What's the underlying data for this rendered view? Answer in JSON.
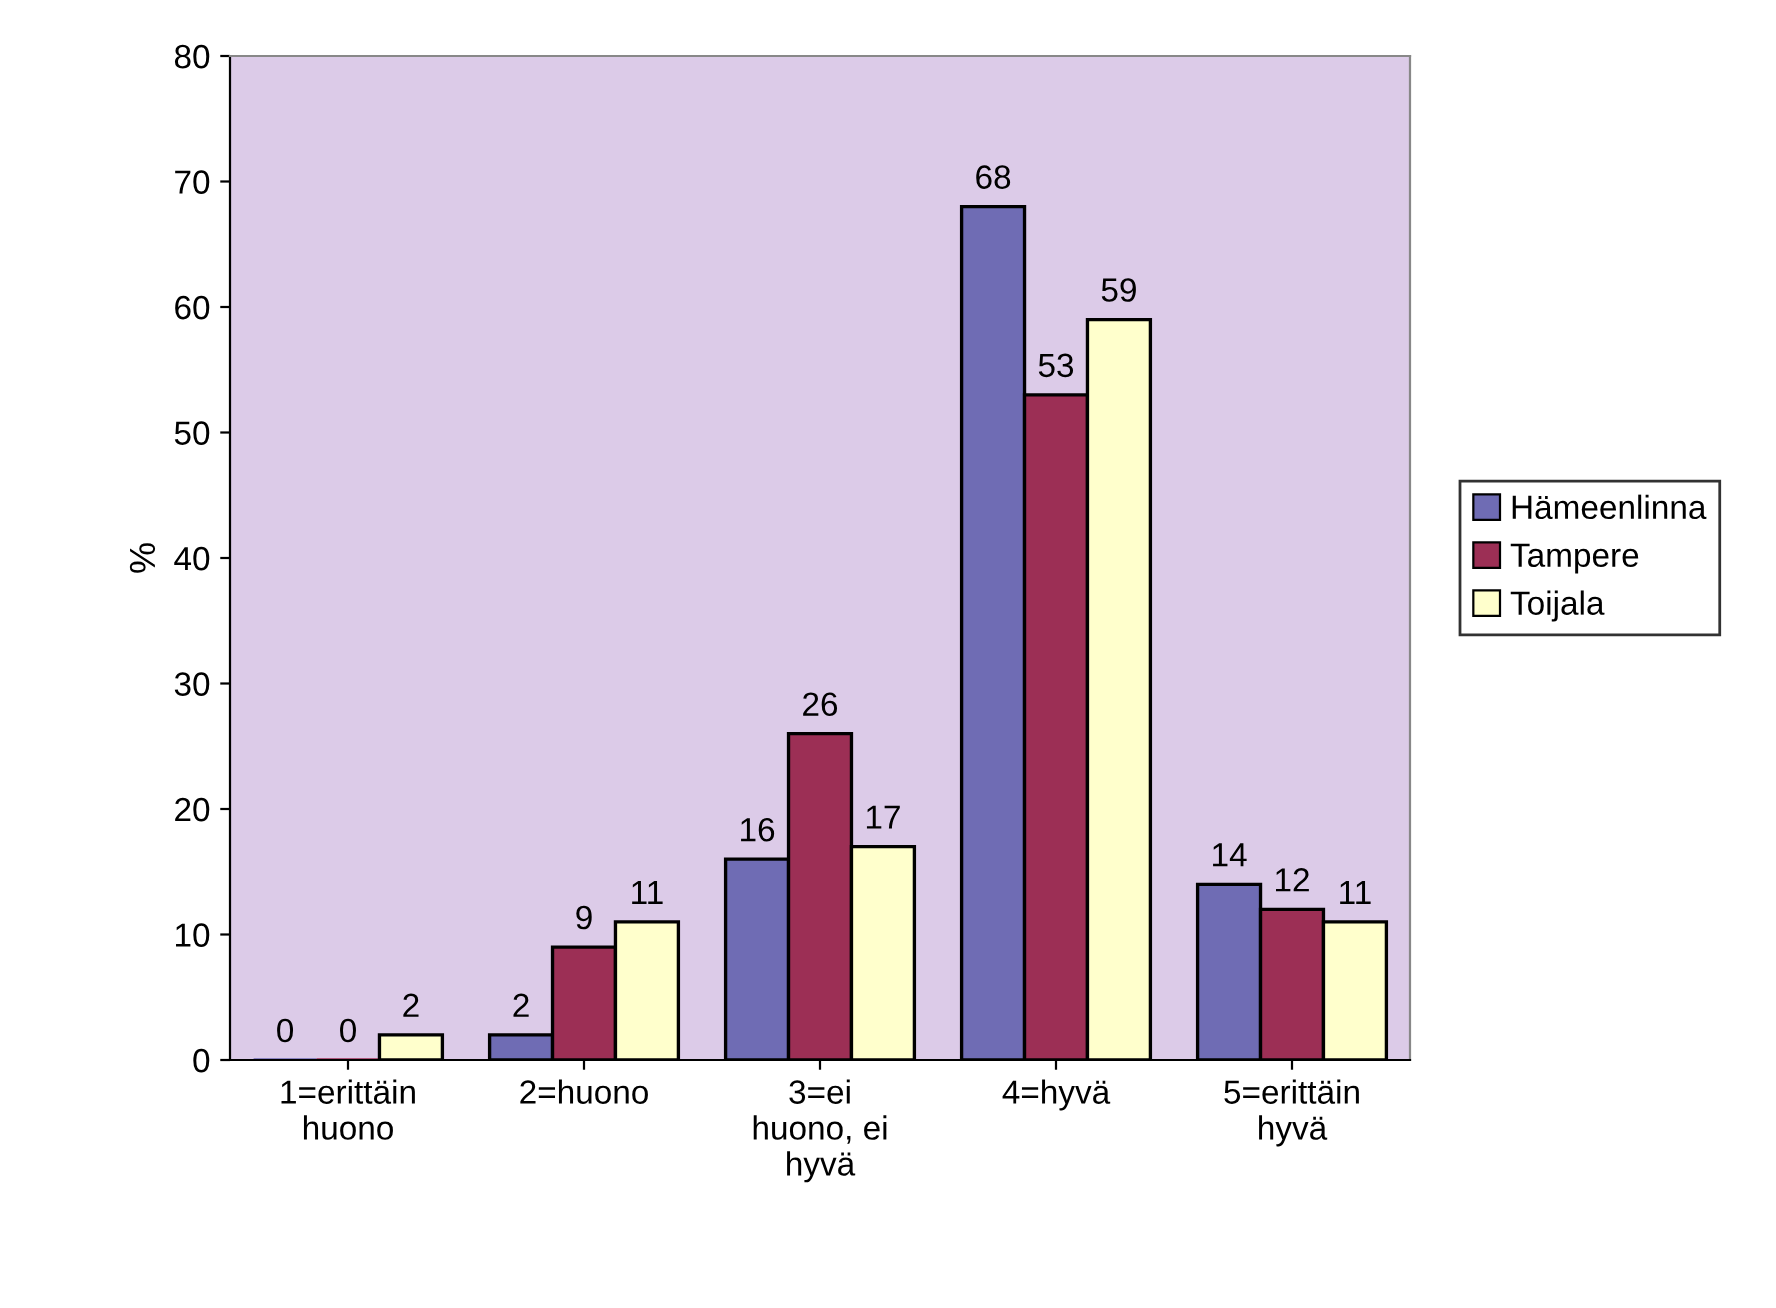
{
  "chart_data": {
    "type": "bar",
    "ylabel": "%",
    "categories": [
      "1=erittäin\nhuono",
      "2=huono",
      "3=ei\nhuono, ei\nhyvä",
      "4=hyvä",
      "5=erittäin\nhyvä"
    ],
    "series": [
      {
        "name": "Hämeenlinna",
        "color": "#6f6cb4",
        "values": [
          0,
          2,
          16,
          68,
          14
        ]
      },
      {
        "name": "Tampere",
        "color": "#9c2f55",
        "values": [
          0,
          9,
          26,
          53,
          12
        ]
      },
      {
        "name": "Toijala",
        "color": "#ffffcc",
        "values": [
          2,
          11,
          17,
          59,
          11
        ]
      }
    ],
    "ylim": [
      0,
      80
    ],
    "yticks": [
      0,
      10,
      20,
      30,
      40,
      50,
      60,
      70,
      80
    ],
    "data_labels": true,
    "grid": false,
    "legend": "right"
  }
}
